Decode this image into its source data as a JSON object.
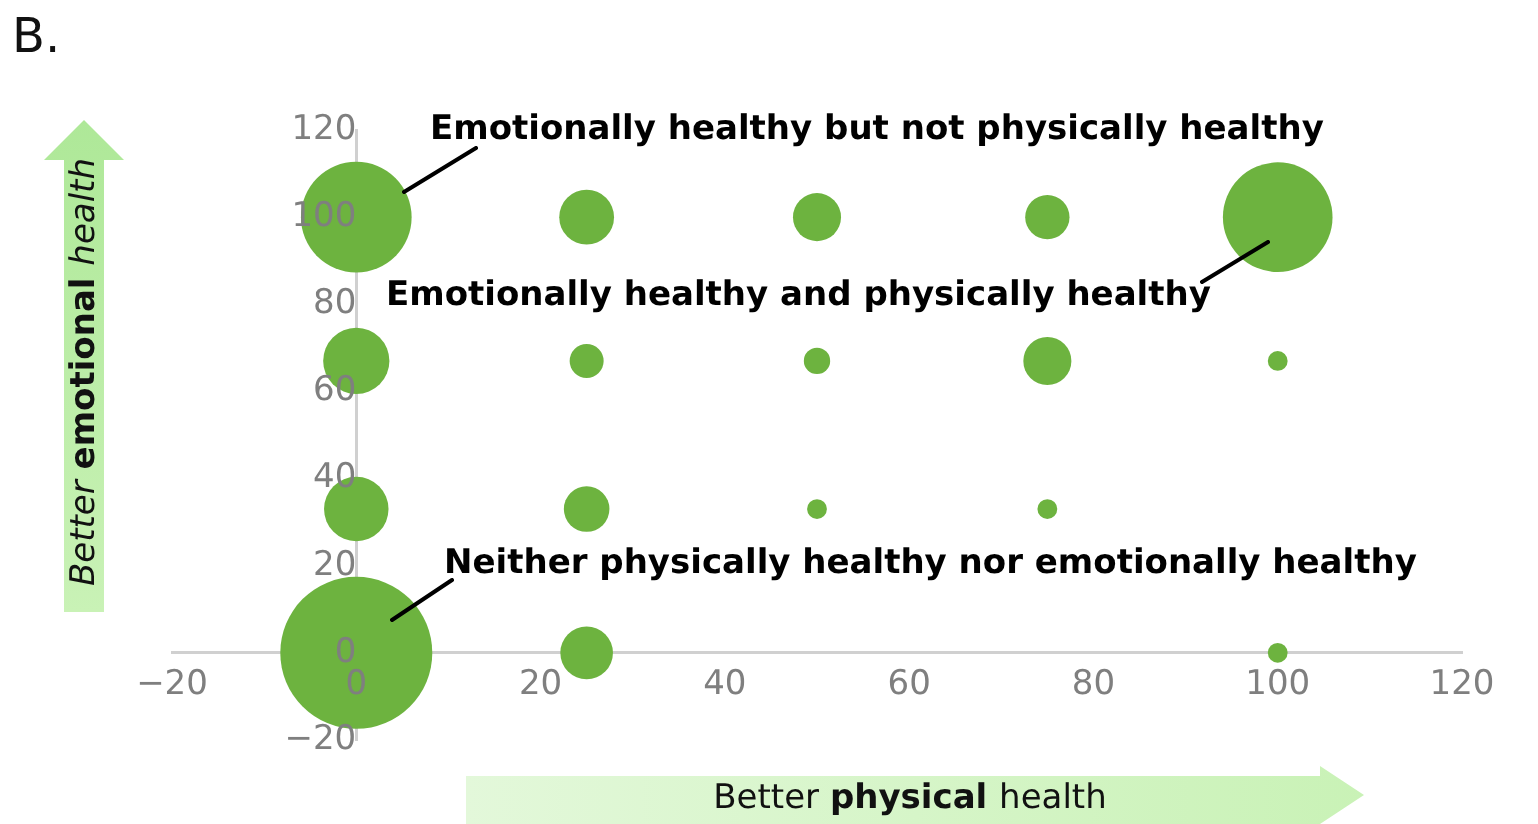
{
  "chart_data": {
    "type": "bubble",
    "title": "B.",
    "xlabel": "Better physical health",
    "ylabel": "Better emotional health",
    "xlim": [
      -20,
      120
    ],
    "ylim": [
      -20,
      120
    ],
    "xticks": [
      -20,
      0,
      20,
      40,
      60,
      80,
      100,
      120
    ],
    "yticks": [
      -20,
      0,
      20,
      40,
      60,
      80,
      100,
      120
    ],
    "series": [
      {
        "color": "#6db33f",
        "x": [
          0,
          25,
          50,
          75,
          100,
          0,
          25,
          50,
          75,
          100,
          0,
          25,
          50,
          75,
          0,
          25,
          100
        ],
        "values": [
          100,
          100,
          100,
          100,
          100,
          67,
          67,
          67,
          67,
          67,
          33,
          33,
          33,
          33,
          0,
          0,
          0
        ],
        "sizes": [
          0.53,
          0.13,
          0.1,
          0.085,
          0.52,
          0.19,
          0.05,
          0.03,
          0.1,
          0.017,
          0.18,
          0.09,
          0.017,
          0.017,
          1,
          0.12,
          0.017
        ]
      }
    ],
    "annotations": [
      "Emotionally healthy but not physically healthy",
      "Emotionally healthy and physically healthy",
      "Neither physically healthy nor emotionally healthy"
    ]
  }
}
